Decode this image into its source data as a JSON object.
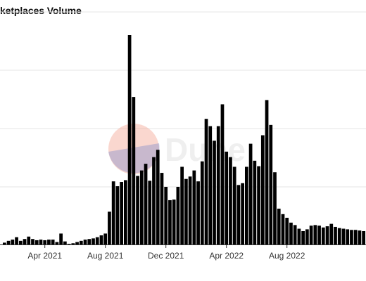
{
  "chart_data": {
    "type": "bar",
    "title": "ketplaces Volume",
    "x_tick_labels": [
      "Apr 2021",
      "Aug 2021",
      "Dec 2021",
      "Apr 2022",
      "Aug 2022"
    ],
    "x_tick_bar_index": [
      10,
      25,
      40,
      55,
      70
    ],
    "values": [
      0.03,
      0.06,
      0.08,
      0.12,
      0.06,
      0.09,
      0.13,
      0.09,
      0.07,
      0.08,
      0.07,
      0.08,
      0.08,
      0.04,
      0.18,
      0.05,
      0.01,
      0.02,
      0.04,
      0.06,
      0.08,
      0.09,
      0.1,
      0.12,
      0.15,
      0.18,
      0.54,
      1.04,
      0.96,
      1.03,
      1.06,
      3.45,
      2.43,
      1.13,
      1.22,
      1.33,
      1.05,
      1.44,
      1.56,
      1.18,
      0.95,
      0.73,
      0.74,
      0.95,
      1.28,
      1.08,
      1.12,
      1.22,
      1.04,
      1.37,
      2.07,
      1.95,
      1.71,
      1.95,
      2.31,
      1.53,
      1.44,
      1.28,
      0.98,
      1.01,
      1.28,
      1.66,
      1.38,
      1.29,
      1.8,
      2.38,
      1.97,
      1.19,
      0.59,
      0.5,
      0.44,
      0.36,
      0.32,
      0.26,
      0.22,
      0.25,
      0.31,
      0.32,
      0.31,
      0.28,
      0.3,
      0.34,
      0.29,
      0.27,
      0.26,
      0.25,
      0.24,
      0.24,
      0.23,
      0.22
    ],
    "bar_color": "#000000",
    "grid": true,
    "legend": "none",
    "watermark": "Dune"
  }
}
